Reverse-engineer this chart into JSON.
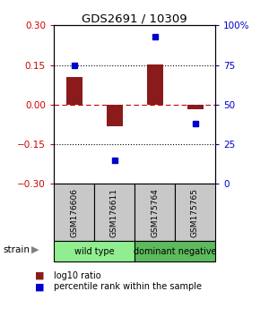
{
  "title": "GDS2691 / 10309",
  "samples": [
    "GSM176606",
    "GSM176611",
    "GSM175764",
    "GSM175765"
  ],
  "log10_ratio": [
    0.105,
    -0.082,
    0.152,
    -0.018
  ],
  "percentile_rank": [
    75,
    15,
    93,
    38
  ],
  "bar_color": "#8B1A1A",
  "dot_color": "#0000CD",
  "ylim_left": [
    -0.3,
    0.3
  ],
  "ylim_right": [
    0,
    100
  ],
  "yticks_left": [
    -0.3,
    -0.15,
    0,
    0.15,
    0.3
  ],
  "yticks_right": [
    0,
    25,
    50,
    75,
    100
  ],
  "groups": [
    {
      "label": "wild type",
      "indices": [
        0,
        1
      ],
      "color": "#90EE90"
    },
    {
      "label": "dominant negative",
      "indices": [
        2,
        3
      ],
      "color": "#5DBB5D"
    }
  ],
  "group_label_x": "strain",
  "legend_bar_label": "log10 ratio",
  "legend_dot_label": "percentile rank within the sample",
  "background_color": "#ffffff",
  "plot_bg_color": "#ffffff",
  "left_tick_color": "#CC0000",
  "right_tick_color": "#0000CD",
  "bar_width": 0.4,
  "sample_box_color": "#c8c8c8",
  "arrow_color": "#808080"
}
